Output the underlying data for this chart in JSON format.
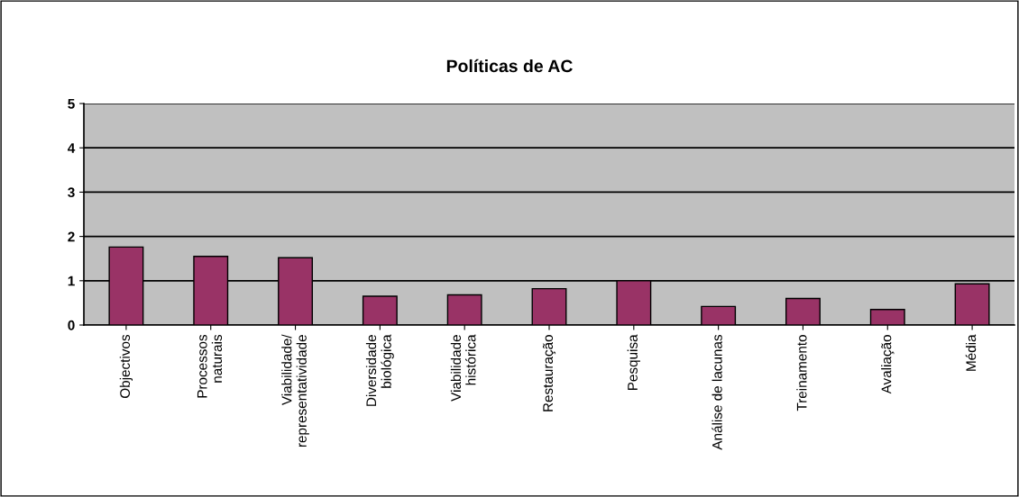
{
  "chart_data": {
    "type": "bar",
    "title": "Políticas de AC",
    "categories": [
      "Objectivos",
      "Processos\nnaturais",
      "Viabilidade/\nrepresentatividade",
      "Diversidade\nbiológica",
      "Viabilidade\nhistórica",
      "Restauração",
      "Pesquisa",
      "Análise de lacunas",
      "Treinamento",
      "Avaliação",
      "Média"
    ],
    "values": [
      1.76,
      1.55,
      1.52,
      0.65,
      0.68,
      0.82,
      1.0,
      0.42,
      0.6,
      0.35,
      0.93
    ],
    "color": "#993366",
    "ylim": [
      0,
      5
    ],
    "yticks": [
      0,
      1,
      2,
      3,
      4,
      5
    ],
    "grid": "y",
    "legend": false
  }
}
